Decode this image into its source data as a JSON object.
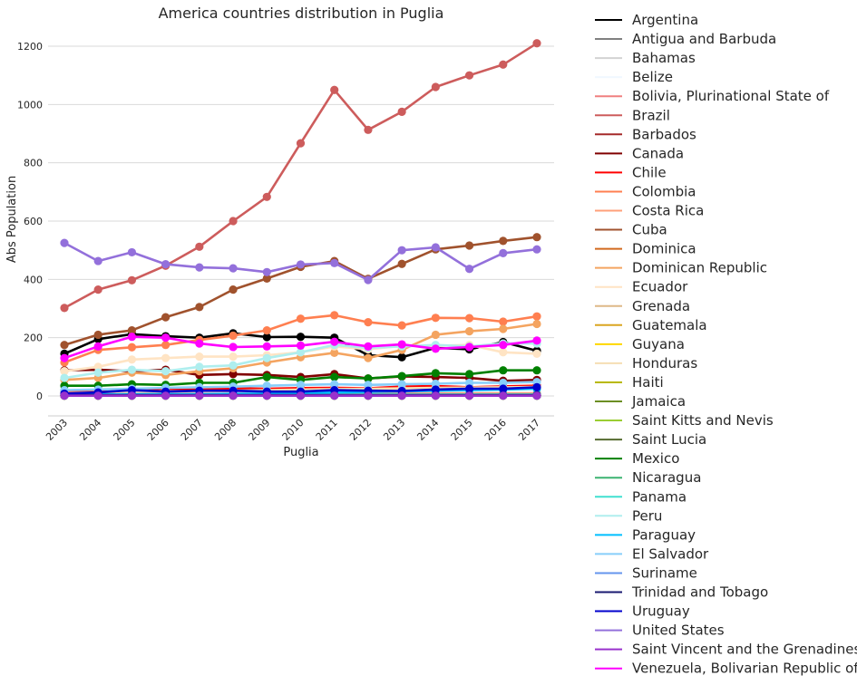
{
  "chart_data": {
    "type": "line",
    "title": "America countries distribution in Puglia",
    "xlabel": "Puglia",
    "ylabel": "Abs Population",
    "categories": [
      "2003",
      "2004",
      "2005",
      "2006",
      "2007",
      "2008",
      "2009",
      "2010",
      "2011",
      "2012",
      "2013",
      "2014",
      "2015",
      "2016",
      "2017"
    ],
    "ylim": [
      -70,
      1300
    ],
    "yticks": [
      0,
      200,
      400,
      600,
      800,
      1000,
      1200
    ],
    "grid": "horizontal",
    "legend_position": "right-outside",
    "series": [
      {
        "name": "Argentina",
        "color": "#000000",
        "values": [
          145,
          195,
          212,
          205,
          200,
          215,
          202,
          203,
          200,
          140,
          133,
          165,
          160,
          185,
          155
        ]
      },
      {
        "name": "Antigua and Barbuda",
        "color": "#808080",
        "values": [
          1,
          1,
          1,
          1,
          1,
          1,
          1,
          1,
          1,
          1,
          1,
          1,
          1,
          1,
          1
        ]
      },
      {
        "name": "Bahamas",
        "color": "#d3d3d3",
        "values": [
          1,
          1,
          1,
          1,
          1,
          1,
          1,
          1,
          1,
          1,
          1,
          1,
          1,
          1,
          1
        ]
      },
      {
        "name": "Belize",
        "color": "#f0f8ff",
        "values": [
          2,
          2,
          2,
          2,
          2,
          2,
          2,
          2,
          2,
          2,
          2,
          2,
          2,
          2,
          2
        ]
      },
      {
        "name": "Bolivia, Plurinational State of",
        "color": "#f08080",
        "values": [
          10,
          12,
          14,
          15,
          16,
          17,
          18,
          20,
          22,
          24,
          26,
          28,
          30,
          32,
          34
        ]
      },
      {
        "name": "Brazil",
        "color": "#cd5c5c",
        "values": [
          302,
          365,
          397,
          447,
          512,
          600,
          683,
          867,
          1050,
          913,
          975,
          1060,
          1100,
          1137,
          1210
        ]
      },
      {
        "name": "Barbados",
        "color": "#a52a2a",
        "values": [
          1,
          1,
          1,
          1,
          1,
          1,
          1,
          1,
          1,
          1,
          1,
          1,
          1,
          1,
          1
        ]
      },
      {
        "name": "Canada",
        "color": "#800000",
        "values": [
          88,
          90,
          85,
          90,
          72,
          75,
          72,
          65,
          75,
          60,
          67,
          65,
          62,
          52,
          55
        ]
      },
      {
        "name": "Chile",
        "color": "#ff0000",
        "values": [
          15,
          18,
          22,
          25,
          24,
          26,
          25,
          27,
          28,
          26,
          32,
          34,
          30,
          33,
          35
        ]
      },
      {
        "name": "Colombia",
        "color": "#ff7f50",
        "values": [
          115,
          158,
          167,
          175,
          192,
          207,
          225,
          265,
          277,
          253,
          242,
          268,
          267,
          255,
          273
        ]
      },
      {
        "name": "Costa Rica",
        "color": "#ffa07a",
        "values": [
          5,
          5,
          6,
          6,
          6,
          7,
          7,
          7,
          8,
          8,
          8,
          9,
          9,
          9,
          9
        ]
      },
      {
        "name": "Cuba",
        "color": "#a0522d",
        "values": [
          175,
          210,
          225,
          270,
          305,
          365,
          403,
          443,
          463,
          402,
          453,
          503,
          516,
          532,
          545
        ]
      },
      {
        "name": "Dominica",
        "color": "#d2691e",
        "values": [
          2,
          2,
          2,
          2,
          2,
          2,
          2,
          2,
          2,
          2,
          2,
          2,
          2,
          2,
          2
        ]
      },
      {
        "name": "Dominican Republic",
        "color": "#f4a460",
        "values": [
          55,
          62,
          80,
          72,
          85,
          95,
          115,
          133,
          148,
          130,
          158,
          210,
          222,
          230,
          247
        ]
      },
      {
        "name": "Ecuador",
        "color": "#ffe4c4",
        "values": [
          85,
          100,
          125,
          130,
          135,
          135,
          140,
          150,
          170,
          160,
          172,
          172,
          175,
          150,
          145
        ]
      },
      {
        "name": "Grenada",
        "color": "#deb887",
        "values": [
          1,
          1,
          1,
          1,
          1,
          1,
          1,
          1,
          1,
          1,
          1,
          1,
          1,
          1,
          1
        ]
      },
      {
        "name": "Guatemala",
        "color": "#daa520",
        "values": [
          3,
          3,
          3,
          3,
          3,
          3,
          3,
          3,
          3,
          3,
          3,
          3,
          3,
          3,
          3
        ]
      },
      {
        "name": "Guyana",
        "color": "#ffd700",
        "values": [
          1,
          1,
          1,
          1,
          1,
          1,
          1,
          1,
          1,
          1,
          1,
          1,
          1,
          1,
          1
        ]
      },
      {
        "name": "Honduras",
        "color": "#f5deb3",
        "values": [
          10,
          12,
          14,
          15,
          16,
          18,
          20,
          22,
          24,
          25,
          26,
          28,
          29,
          30,
          31
        ]
      },
      {
        "name": "Haiti",
        "color": "#b8b800",
        "values": [
          2,
          2,
          2,
          2,
          2,
          2,
          2,
          2,
          2,
          2,
          2,
          2,
          2,
          2,
          2
        ]
      },
      {
        "name": "Jamaica",
        "color": "#6b8e23",
        "values": [
          3,
          3,
          3,
          3,
          3,
          3,
          3,
          3,
          3,
          3,
          3,
          3,
          3,
          3,
          3
        ]
      },
      {
        "name": "Saint Kitts and Nevis",
        "color": "#9acd32",
        "values": [
          1,
          1,
          1,
          1,
          1,
          1,
          1,
          1,
          1,
          1,
          1,
          1,
          1,
          1,
          1
        ]
      },
      {
        "name": "Saint Lucia",
        "color": "#556b2f",
        "values": [
          1,
          1,
          1,
          1,
          1,
          1,
          1,
          1,
          1,
          1,
          1,
          1,
          1,
          1,
          1
        ]
      },
      {
        "name": "Mexico",
        "color": "#008000",
        "values": [
          35,
          35,
          40,
          38,
          45,
          45,
          65,
          55,
          65,
          60,
          68,
          78,
          75,
          88,
          88
        ]
      },
      {
        "name": "Nicaragua",
        "color": "#3cb371",
        "values": [
          3,
          3,
          3,
          3,
          3,
          3,
          3,
          3,
          3,
          3,
          3,
          3,
          3,
          3,
          3
        ]
      },
      {
        "name": "Panama",
        "color": "#40e0d0",
        "values": [
          5,
          5,
          5,
          5,
          5,
          5,
          5,
          5,
          5,
          5,
          5,
          5,
          5,
          5,
          5
        ]
      },
      {
        "name": "Peru",
        "color": "#afeeee",
        "values": [
          62,
          80,
          90,
          85,
          100,
          105,
          130,
          150,
          175,
          165,
          170,
          175,
          170,
          180,
          180
        ]
      },
      {
        "name": "Paraguay",
        "color": "#00bfff",
        "values": [
          5,
          5,
          6,
          6,
          6,
          7,
          8,
          10,
          12,
          14,
          16,
          18,
          20,
          22,
          25
        ]
      },
      {
        "name": "El Salvador",
        "color": "#87cefa",
        "values": [
          20,
          22,
          25,
          28,
          30,
          32,
          35,
          38,
          40,
          38,
          40,
          42,
          45,
          45,
          48
        ]
      },
      {
        "name": "Suriname",
        "color": "#6495ed",
        "values": [
          1,
          1,
          1,
          1,
          1,
          1,
          1,
          1,
          1,
          1,
          1,
          1,
          1,
          1,
          1
        ]
      },
      {
        "name": "Trinidad and Tobago",
        "color": "#191970",
        "values": [
          3,
          3,
          3,
          3,
          3,
          3,
          3,
          3,
          3,
          3,
          3,
          3,
          3,
          3,
          3
        ]
      },
      {
        "name": "Uruguay",
        "color": "#0000cd",
        "values": [
          8,
          12,
          20,
          15,
          18,
          18,
          15,
          15,
          20,
          18,
          17,
          22,
          25,
          25,
          30
        ]
      },
      {
        "name": "United States",
        "color": "#9370db",
        "values": [
          525,
          463,
          493,
          452,
          441,
          438,
          425,
          451,
          456,
          398,
          500,
          510,
          436,
          490,
          503
        ]
      },
      {
        "name": "Saint Vincent and the Grenadines",
        "color": "#9932cc",
        "values": [
          1,
          1,
          1,
          1,
          1,
          1,
          1,
          1,
          1,
          1,
          1,
          1,
          1,
          1,
          1
        ]
      },
      {
        "name": "Venezuela, Bolivarian Republic of",
        "color": "#ff00ff",
        "values": [
          130,
          170,
          203,
          200,
          180,
          168,
          170,
          173,
          186,
          170,
          177,
          162,
          168,
          175,
          190
        ]
      }
    ]
  }
}
